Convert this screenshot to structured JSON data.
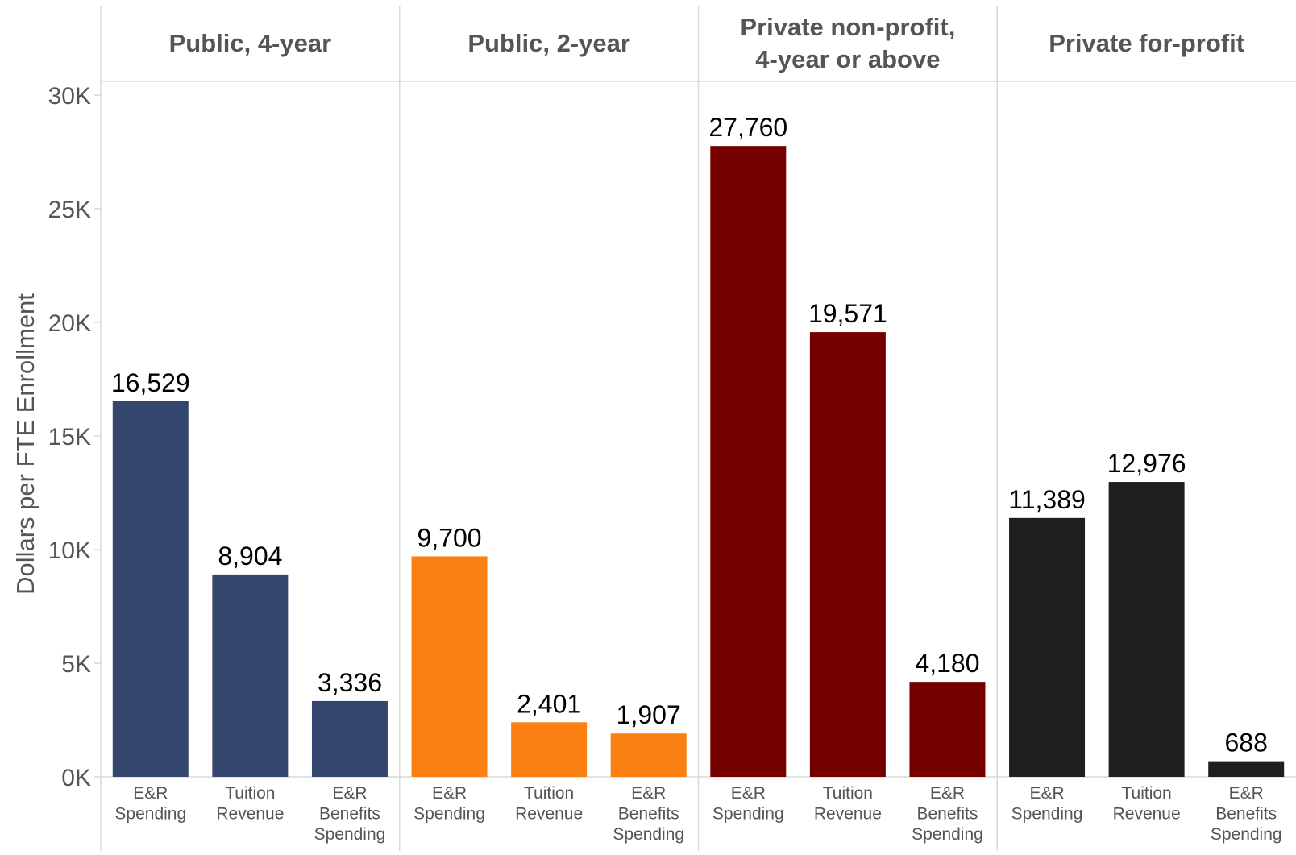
{
  "chart_data": {
    "type": "bar",
    "ylabel": "Dollars per FTE Enrollment",
    "ylim": [
      0,
      30000
    ],
    "yticks": [
      0,
      5000,
      10000,
      15000,
      20000,
      25000,
      30000
    ],
    "ytick_labels": [
      "0K",
      "5K",
      "10K",
      "15K",
      "20K",
      "25K",
      "30K"
    ],
    "categories": [
      "E&R Spending",
      "Tuition Revenue",
      "E&R Benefits Spending"
    ],
    "panels": [
      {
        "title": "Public, 4-year",
        "color": "#34466e",
        "values": [
          16529,
          8904,
          3336
        ],
        "labels": [
          "16,529",
          "8,904",
          "3,336"
        ]
      },
      {
        "title": "Public, 2-year",
        "color": "#fb7f12",
        "values": [
          9700,
          2401,
          1907
        ],
        "labels": [
          "9,700",
          "2,401",
          "1,907"
        ]
      },
      {
        "title": "Private non-profit, 4-year or above",
        "color": "#750000",
        "values": [
          27760,
          19571,
          4180
        ],
        "labels": [
          "27,760",
          "19,571",
          "4,180"
        ]
      },
      {
        "title": "Private for-profit",
        "color": "#1e1e1e",
        "values": [
          11389,
          12976,
          688
        ],
        "labels": [
          "11,389",
          "12,976",
          "688"
        ]
      }
    ],
    "grid": false,
    "legend": "none"
  }
}
